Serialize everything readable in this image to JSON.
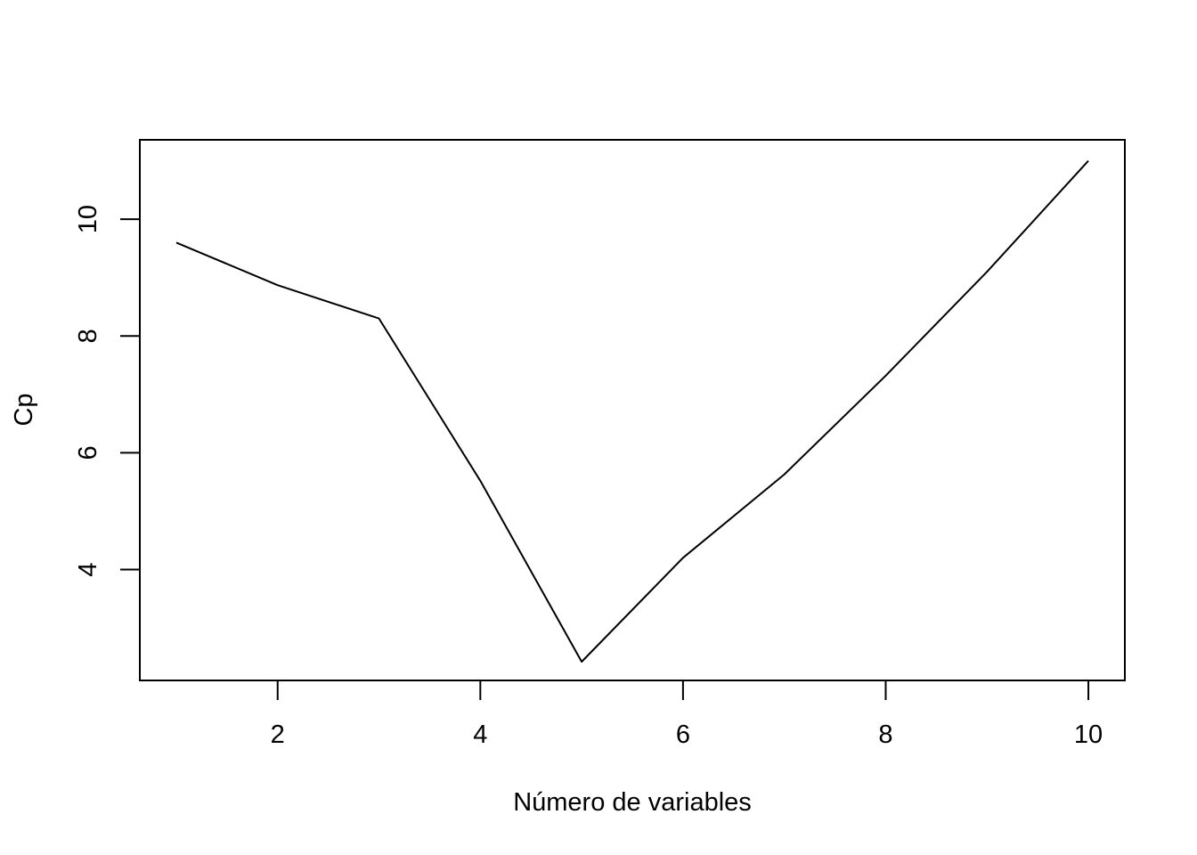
{
  "chart_data": {
    "type": "line",
    "title": "",
    "xlabel": "Número de variables",
    "ylabel": "Cp",
    "x": [
      1,
      2,
      3,
      4,
      5,
      6,
      7,
      8,
      9,
      10
    ],
    "series": [
      {
        "values": [
          9.6,
          8.87,
          8.3,
          5.52,
          2.42,
          4.2,
          5.63,
          7.32,
          9.1,
          11.0
        ]
      }
    ],
    "xlim": [
      0.64,
      10.36
    ],
    "ylim": [
      2.1,
      11.36
    ],
    "xticks": [
      2,
      4,
      6,
      8,
      10
    ],
    "yticks": [
      4,
      6,
      8,
      10
    ],
    "grid": false,
    "legend": "none",
    "line_color": "#000000"
  }
}
